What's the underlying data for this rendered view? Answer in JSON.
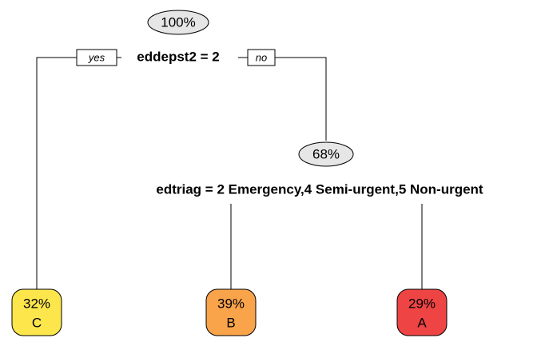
{
  "root": {
    "percent": "100%"
  },
  "split1": {
    "label": "eddepst2 = 2",
    "yes": "yes",
    "no": "no"
  },
  "node2": {
    "percent": "68%"
  },
  "split2": {
    "label": "edtriag = 2 Emergency,4 Semi-urgent,5 Non-urgent"
  },
  "leaves": [
    {
      "percent": "32%",
      "class": "C",
      "color": "#fde64b"
    },
    {
      "percent": "39%",
      "class": "B",
      "color": "#f9a34a"
    },
    {
      "percent": "29%",
      "class": "A",
      "color": "#ee4444"
    }
  ]
}
